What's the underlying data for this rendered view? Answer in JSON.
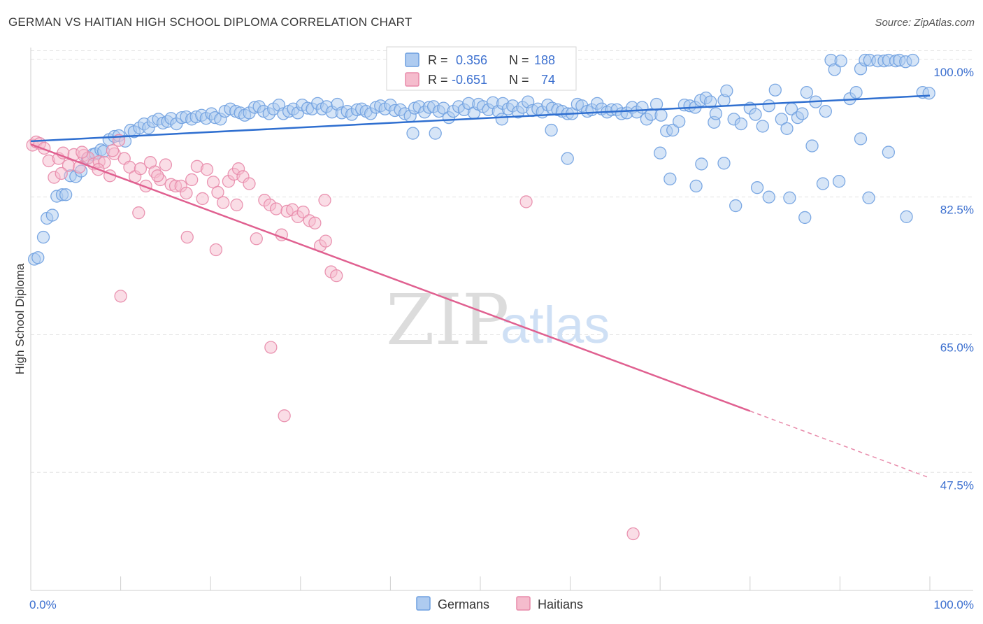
{
  "title": "GERMAN VS HAITIAN HIGH SCHOOL DIPLOMA CORRELATION CHART",
  "source": "Source: ZipAtlas.com",
  "chart_data": {
    "type": "scatter",
    "title": "GERMAN VS HAITIAN HIGH SCHOOL DIPLOMA CORRELATION CHART",
    "xlabel": "",
    "ylabel": "High School Diploma",
    "xlim": [
      0,
      100
    ],
    "ylim": [
      32.5,
      101.5
    ],
    "x_tick_labels": [
      "0.0%",
      "100.0%"
    ],
    "y_ticks": [
      47.5,
      65.0,
      82.5,
      100.0
    ],
    "y_tick_labels": [
      "47.5%",
      "65.0%",
      "82.5%",
      "100.0%"
    ],
    "grid": true,
    "watermark": {
      "zip": "ZIP",
      "atlas": "atlas"
    },
    "legend": {
      "stats": [
        {
          "r_label": "R =",
          "r_value": "0.356",
          "n_label": "N =",
          "n_value": "188"
        },
        {
          "r_label": "R =",
          "r_value": "-0.651",
          "n_label": "N =",
          "n_value": "74"
        }
      ]
    },
    "series": [
      {
        "name": "Germans",
        "color": "#6fa0e0",
        "fill": "#aecbf0",
        "trend": {
          "x0": 0,
          "y0": 89.6,
          "x1": 100,
          "y1": 95.4
        },
        "points": [
          [
            0.4,
            74.6
          ],
          [
            0.8,
            74.8
          ],
          [
            1.4,
            77.4
          ],
          [
            1.8,
            79.8
          ],
          [
            2.4,
            80.2
          ],
          [
            2.9,
            82.6
          ],
          [
            3.5,
            82.8
          ],
          [
            3.9,
            82.8
          ],
          [
            4.4,
            85.2
          ],
          [
            5.0,
            85.1
          ],
          [
            5.6,
            85.8
          ],
          [
            6.3,
            87.4
          ],
          [
            6.9,
            87.9
          ],
          [
            7.2,
            88.0
          ],
          [
            7.8,
            88.5
          ],
          [
            8.1,
            88.3
          ],
          [
            8.7,
            89.8
          ],
          [
            9.3,
            90.2
          ],
          [
            9.8,
            90.3
          ],
          [
            10.5,
            89.6
          ],
          [
            11.1,
            91.0
          ],
          [
            11.5,
            90.8
          ],
          [
            12.1,
            91.3
          ],
          [
            12.6,
            91.8
          ],
          [
            13.1,
            91.3
          ],
          [
            13.6,
            92.1
          ],
          [
            14.2,
            92.4
          ],
          [
            14.7,
            91.9
          ],
          [
            15.2,
            92.1
          ],
          [
            15.6,
            92.5
          ],
          [
            16.2,
            91.8
          ],
          [
            16.8,
            92.6
          ],
          [
            17.3,
            92.7
          ],
          [
            17.9,
            92.4
          ],
          [
            18.4,
            92.7
          ],
          [
            19.0,
            92.9
          ],
          [
            19.5,
            92.5
          ],
          [
            20.1,
            93.1
          ],
          [
            20.5,
            92.6
          ],
          [
            21.1,
            92.4
          ],
          [
            21.6,
            93.4
          ],
          [
            22.2,
            93.7
          ],
          [
            22.8,
            93.4
          ],
          [
            23.3,
            93.2
          ],
          [
            23.8,
            92.9
          ],
          [
            24.3,
            93.2
          ],
          [
            24.9,
            93.9
          ],
          [
            25.4,
            94.0
          ],
          [
            25.9,
            93.4
          ],
          [
            26.5,
            93.1
          ],
          [
            27.0,
            93.7
          ],
          [
            27.6,
            94.2
          ],
          [
            28.1,
            93.1
          ],
          [
            28.7,
            93.4
          ],
          [
            29.2,
            93.7
          ],
          [
            29.7,
            93.2
          ],
          [
            30.2,
            94.2
          ],
          [
            30.8,
            93.8
          ],
          [
            31.3,
            93.7
          ],
          [
            31.9,
            94.4
          ],
          [
            32.4,
            93.7
          ],
          [
            32.9,
            94.0
          ],
          [
            33.5,
            93.3
          ],
          [
            34.1,
            94.3
          ],
          [
            34.6,
            93.2
          ],
          [
            35.2,
            93.4
          ],
          [
            35.7,
            93.0
          ],
          [
            36.3,
            93.6
          ],
          [
            36.8,
            93.7
          ],
          [
            37.3,
            93.4
          ],
          [
            37.8,
            93.1
          ],
          [
            38.4,
            93.9
          ],
          [
            38.9,
            94.1
          ],
          [
            39.4,
            93.7
          ],
          [
            40.0,
            94.2
          ],
          [
            40.5,
            93.5
          ],
          [
            41.1,
            93.6
          ],
          [
            41.6,
            93.1
          ],
          [
            42.2,
            92.8
          ],
          [
            42.7,
            93.8
          ],
          [
            43.2,
            94.0
          ],
          [
            43.8,
            93.3
          ],
          [
            44.3,
            93.9
          ],
          [
            44.8,
            94.0
          ],
          [
            45.4,
            93.4
          ],
          [
            45.9,
            93.8
          ],
          [
            46.5,
            92.6
          ],
          [
            47.0,
            93.4
          ],
          [
            47.6,
            94.0
          ],
          [
            48.2,
            93.6
          ],
          [
            48.7,
            94.4
          ],
          [
            49.3,
            93.2
          ],
          [
            49.8,
            94.3
          ],
          [
            50.3,
            94.0
          ],
          [
            50.9,
            93.6
          ],
          [
            51.4,
            94.5
          ],
          [
            52.0,
            93.4
          ],
          [
            52.5,
            94.4
          ],
          [
            53.1,
            93.7
          ],
          [
            53.6,
            94.1
          ],
          [
            54.2,
            93.3
          ],
          [
            54.7,
            93.9
          ],
          [
            55.3,
            94.6
          ],
          [
            55.8,
            93.5
          ],
          [
            56.4,
            93.7
          ],
          [
            56.9,
            93.3
          ],
          [
            57.5,
            94.2
          ],
          [
            58.0,
            93.8
          ],
          [
            58.6,
            93.6
          ],
          [
            59.1,
            93.4
          ],
          [
            59.7,
            93.1
          ],
          [
            60.2,
            93.1
          ],
          [
            60.8,
            94.3
          ],
          [
            61.3,
            94.1
          ],
          [
            61.9,
            93.4
          ],
          [
            62.4,
            93.6
          ],
          [
            63.0,
            94.4
          ],
          [
            63.5,
            93.7
          ],
          [
            64.1,
            93.3
          ],
          [
            64.6,
            93.6
          ],
          [
            65.2,
            93.6
          ],
          [
            65.7,
            93.1
          ],
          [
            66.3,
            93.2
          ],
          [
            66.9,
            93.9
          ],
          [
            67.4,
            93.3
          ],
          [
            68.0,
            93.9
          ],
          [
            68.5,
            92.4
          ],
          [
            69.0,
            93.0
          ],
          [
            69.6,
            94.3
          ],
          [
            70.1,
            92.9
          ],
          [
            70.7,
            90.9
          ],
          [
            71.4,
            91.0
          ],
          [
            72.1,
            92.1
          ],
          [
            72.7,
            94.2
          ],
          [
            73.3,
            94.1
          ],
          [
            73.9,
            93.9
          ],
          [
            74.5,
            94.8
          ],
          [
            75.1,
            95.1
          ],
          [
            75.6,
            94.6
          ],
          [
            76.0,
            92.0
          ],
          [
            77.1,
            94.8
          ],
          [
            77.4,
            96.0
          ],
          [
            78.2,
            92.4
          ],
          [
            79.0,
            91.8
          ],
          [
            80.0,
            93.8
          ],
          [
            80.6,
            93.0
          ],
          [
            81.4,
            91.5
          ],
          [
            82.1,
            94.1
          ],
          [
            82.8,
            96.1
          ],
          [
            83.5,
            92.4
          ],
          [
            84.1,
            91.2
          ],
          [
            84.6,
            93.7
          ],
          [
            85.3,
            92.6
          ],
          [
            85.8,
            93.1
          ],
          [
            86.3,
            95.8
          ],
          [
            86.9,
            89.0
          ],
          [
            87.3,
            94.6
          ],
          [
            88.4,
            93.4
          ],
          [
            89.0,
            99.9
          ],
          [
            89.4,
            98.7
          ],
          [
            90.1,
            99.8
          ],
          [
            91.1,
            95.0
          ],
          [
            91.8,
            95.8
          ],
          [
            92.3,
            98.8
          ],
          [
            92.8,
            99.9
          ],
          [
            93.3,
            99.9
          ],
          [
            94.2,
            99.8
          ],
          [
            94.9,
            99.8
          ],
          [
            95.4,
            99.9
          ],
          [
            96.2,
            99.8
          ],
          [
            96.6,
            99.9
          ],
          [
            97.3,
            99.7
          ],
          [
            98.1,
            99.9
          ],
          [
            99.2,
            95.8
          ],
          [
            99.9,
            95.7
          ],
          [
            42.5,
            90.6
          ],
          [
            45.0,
            90.6
          ],
          [
            52.4,
            92.4
          ],
          [
            57.9,
            91.0
          ],
          [
            59.7,
            87.4
          ],
          [
            70.0,
            88.1
          ],
          [
            71.1,
            84.8
          ],
          [
            74.0,
            83.9
          ],
          [
            76.2,
            93.1
          ],
          [
            77.1,
            86.8
          ],
          [
            78.4,
            81.4
          ],
          [
            80.8,
            83.7
          ],
          [
            82.1,
            82.5
          ],
          [
            84.4,
            82.4
          ],
          [
            86.1,
            79.9
          ],
          [
            88.1,
            84.2
          ],
          [
            89.9,
            84.5
          ],
          [
            92.3,
            89.9
          ],
          [
            93.2,
            82.4
          ],
          [
            95.4,
            88.2
          ],
          [
            97.4,
            80.0
          ],
          [
            74.6,
            86.7
          ]
        ]
      },
      {
        "name": "Haitians",
        "color": "#e88aaa",
        "fill": "#f5bccd",
        "trend": {
          "x0": 0,
          "y0": 89.2,
          "x1": 80,
          "y1": 55.3
        },
        "trend_dashed": {
          "x0": 80,
          "y0": 55.3,
          "x1": 100,
          "y1": 46.8
        },
        "points": [
          [
            0.2,
            89.1
          ],
          [
            0.6,
            89.5
          ],
          [
            1.0,
            89.3
          ],
          [
            1.5,
            88.7
          ],
          [
            2.0,
            87.1
          ],
          [
            2.6,
            85.0
          ],
          [
            3.1,
            87.4
          ],
          [
            3.6,
            88.1
          ],
          [
            4.2,
            86.5
          ],
          [
            4.8,
            87.9
          ],
          [
            5.4,
            86.3
          ],
          [
            5.9,
            87.8
          ],
          [
            6.4,
            87.5
          ],
          [
            7.0,
            86.7
          ],
          [
            7.6,
            87.0
          ],
          [
            8.2,
            86.9
          ],
          [
            8.8,
            85.2
          ],
          [
            9.3,
            88.0
          ],
          [
            9.8,
            89.7
          ],
          [
            10.4,
            87.4
          ],
          [
            11.0,
            86.3
          ],
          [
            11.6,
            85.1
          ],
          [
            12.2,
            86.1
          ],
          [
            12.8,
            83.9
          ],
          [
            13.3,
            86.9
          ],
          [
            13.8,
            85.7
          ],
          [
            14.4,
            84.7
          ],
          [
            15.0,
            86.6
          ],
          [
            15.6,
            84.1
          ],
          [
            16.1,
            83.9
          ],
          [
            16.7,
            83.9
          ],
          [
            17.3,
            83.0
          ],
          [
            17.9,
            84.7
          ],
          [
            18.5,
            86.4
          ],
          [
            19.1,
            82.3
          ],
          [
            19.6,
            86.0
          ],
          [
            20.3,
            84.4
          ],
          [
            20.8,
            83.1
          ],
          [
            21.4,
            81.8
          ],
          [
            22.0,
            84.5
          ],
          [
            22.6,
            85.4
          ],
          [
            23.1,
            86.1
          ],
          [
            23.6,
            85.1
          ],
          [
            24.3,
            84.2
          ],
          [
            26.0,
            82.1
          ],
          [
            26.6,
            81.5
          ],
          [
            27.3,
            81.0
          ],
          [
            27.9,
            77.7
          ],
          [
            28.5,
            80.7
          ],
          [
            29.1,
            80.9
          ],
          [
            29.7,
            80.0
          ],
          [
            30.3,
            80.6
          ],
          [
            31.0,
            79.5
          ],
          [
            31.6,
            79.2
          ],
          [
            32.2,
            76.3
          ],
          [
            32.8,
            76.9
          ],
          [
            33.4,
            73.0
          ],
          [
            34.0,
            72.5
          ],
          [
            3.4,
            85.5
          ],
          [
            5.7,
            88.2
          ],
          [
            7.5,
            86.0
          ],
          [
            9.1,
            88.4
          ],
          [
            12.0,
            80.5
          ],
          [
            14.1,
            85.2
          ],
          [
            17.4,
            77.4
          ],
          [
            20.6,
            75.8
          ],
          [
            22.9,
            81.5
          ],
          [
            25.1,
            77.2
          ],
          [
            26.7,
            63.4
          ],
          [
            28.2,
            54.7
          ],
          [
            32.7,
            82.1
          ],
          [
            55.1,
            81.9
          ],
          [
            67.0,
            39.7
          ],
          [
            10.0,
            69.9
          ]
        ]
      }
    ]
  },
  "legend_bottom": [
    {
      "label": "Germans"
    },
    {
      "label": "Haitians"
    }
  ]
}
